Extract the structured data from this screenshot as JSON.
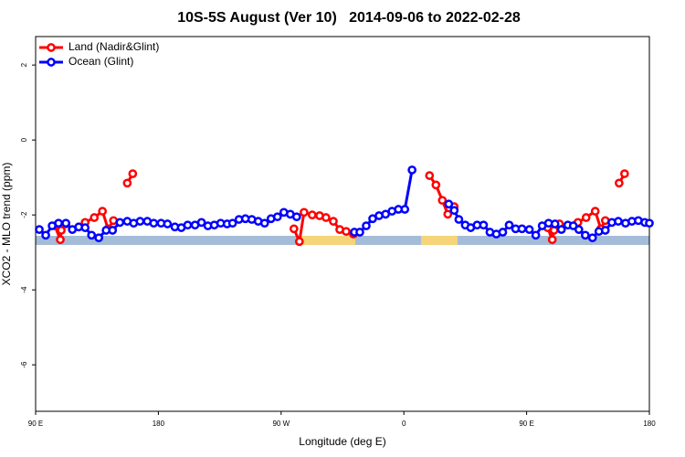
{
  "chart_data": {
    "type": "line",
    "title": "10S-5S August (Ver 10)   2014-09-06 to 2022-02-28",
    "xlabel": "Longitude (deg E)",
    "ylabel": "XCO2 - MLO trend (ppm)",
    "xlim": [
      90,
      540
    ],
    "ylim": [
      -7.24,
      2.76
    ],
    "xticks": [
      {
        "value": 90,
        "label": "90 E"
      },
      180,
      {
        "value": 270,
        "label": "90 W"
      },
      {
        "value": 360,
        "label": "0"
      },
      {
        "value": 450,
        "label": "90 E"
      },
      {
        "value": 540,
        "label": "180"
      }
    ],
    "yticks": [
      -6,
      -4,
      -2,
      0,
      2
    ],
    "legend": "top-left",
    "series": [
      {
        "name": "Land (Nadir&Glint)",
        "color": "#ff0000",
        "x": [
          104.1,
          108.1,
          108.8,
          112.2,
          null,
          126.3,
          133.0,
          139.0,
          143.1,
          147.1,
          null,
          157.2,
          161.2,
          null,
          279.4,
          283.4,
          286.8,
          292.8,
          298.2,
          302.9,
          308.3,
          313.0,
          317.7,
          323.0,
          null,
          378.8,
          383.5,
          388.2,
          392.2,
          396.9,
          null,
          465.4,
          468.8,
          470.1,
          474.1,
          null,
          487.6,
          493.6,
          500.3,
          504.4,
          507.7,
          null,
          517.8,
          521.8
        ],
        "values": [
          -2.29,
          -2.66,
          -2.41,
          -2.24,
          null,
          -2.2,
          -2.07,
          -1.9,
          -2.37,
          -2.15,
          null,
          -1.15,
          -0.9,
          null,
          -2.37,
          -2.71,
          -1.93,
          -2.0,
          -2.02,
          -2.07,
          -2.17,
          -2.39,
          -2.44,
          -2.51,
          null,
          -0.95,
          -1.2,
          -1.61,
          -1.98,
          -1.78,
          null,
          -2.34,
          -2.66,
          -2.41,
          -2.24,
          null,
          -2.2,
          -2.07,
          -1.9,
          -2.37,
          -2.15,
          null,
          -1.15,
          -0.9
        ]
      },
      {
        "name": "Ocean (Glint)",
        "color": "#0000ff",
        "x": [
          92.7,
          97.4,
          102.1,
          106.8,
          112.2,
          116.9,
          121.6,
          126.3,
          131.0,
          136.3,
          141.7,
          146.4,
          151.8,
          157.2,
          161.9,
          166.6,
          171.9,
          176.6,
          182.0,
          186.7,
          192.1,
          196.8,
          201.5,
          206.9,
          211.6,
          216.3,
          221.0,
          225.7,
          230.4,
          234.4,
          239.1,
          243.8,
          248.5,
          253.2,
          257.9,
          262.6,
          267.3,
          272.0,
          276.7,
          281.4,
          null,
          323.7,
          327.7,
          332.4,
          337.1,
          341.8,
          346.6,
          351.3,
          356.0,
          360.7,
          366.0,
          null,
          392.9,
          396.9,
          400.3,
          405.0,
          409.0,
          413.7,
          418.4,
          423.1,
          427.8,
          432.5,
          437.2,
          441.9,
          446.6,
          452.0,
          456.7,
          461.4,
          466.1,
          470.8,
          475.5,
          480.2,
          484.2,
          488.3,
          493.0,
          498.3,
          503.0,
          507.7,
          512.5,
          517.2,
          522.5,
          527.2,
          531.9,
          536.6,
          540.0
        ],
        "values": [
          -2.39,
          -2.54,
          -2.29,
          -2.22,
          -2.22,
          -2.39,
          -2.32,
          -2.34,
          -2.54,
          -2.61,
          -2.41,
          -2.41,
          -2.2,
          -2.17,
          -2.22,
          -2.17,
          -2.17,
          -2.22,
          -2.22,
          -2.24,
          -2.32,
          -2.34,
          -2.27,
          -2.27,
          -2.2,
          -2.29,
          -2.27,
          -2.22,
          -2.24,
          -2.22,
          -2.12,
          -2.1,
          -2.12,
          -2.17,
          -2.22,
          -2.1,
          -2.05,
          -1.93,
          -1.98,
          -2.05,
          null,
          -2.46,
          -2.46,
          -2.29,
          -2.1,
          -2.02,
          -1.98,
          -1.9,
          -1.85,
          -1.85,
          -0.8,
          null,
          -1.71,
          -1.88,
          -2.12,
          -2.27,
          -2.34,
          -2.27,
          -2.27,
          -2.46,
          -2.51,
          -2.46,
          -2.27,
          -2.37,
          -2.37,
          -2.39,
          -2.54,
          -2.29,
          -2.22,
          -2.24,
          -2.39,
          -2.27,
          -2.29,
          -2.39,
          -2.54,
          -2.61,
          -2.44,
          -2.41,
          -2.2,
          -2.17,
          -2.22,
          -2.17,
          -2.15,
          -2.2,
          -2.22
        ]
      }
    ]
  }
}
